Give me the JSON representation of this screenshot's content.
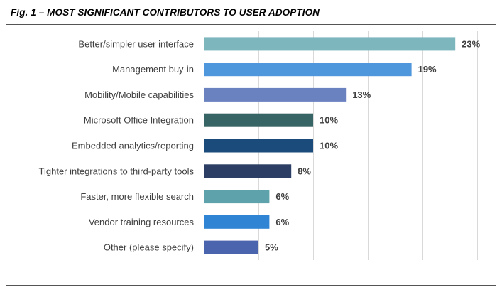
{
  "title": "Fig. 1 – MOST SIGNIFICANT CONTRIBUTORS TO USER ADOPTION",
  "chart_data": {
    "type": "bar",
    "orientation": "horizontal",
    "title": "Fig. 1 – MOST SIGNIFICANT CONTRIBUTORS TO USER ADOPTION",
    "xlabel": "",
    "ylabel": "",
    "xlim": [
      0,
      25
    ],
    "grid": true,
    "legend": "none",
    "categories": [
      "Better/simpler user interface",
      "Management buy-in",
      "Mobility/Mobile capabilities",
      "Microsoft Office Integration",
      "Embedded analytics/reporting",
      "Tighter integrations to third-party tools",
      "Faster, more flexible search",
      "Vendor training resources",
      "Other (please specify)"
    ],
    "values": [
      23,
      19,
      13,
      10,
      10,
      8,
      6,
      6,
      5
    ],
    "value_labels": [
      "23%",
      "19%",
      "13%",
      "10%",
      "10%",
      "8%",
      "6%",
      "6%",
      "5%"
    ],
    "colors": [
      "#7eb6bd",
      "#4f97dc",
      "#6b82c1",
      "#376565",
      "#1a4b7b",
      "#2c3e64",
      "#5ea3ab",
      "#2f84d4",
      "#4a64ad"
    ],
    "gridline_color": "#d9d9d9"
  }
}
